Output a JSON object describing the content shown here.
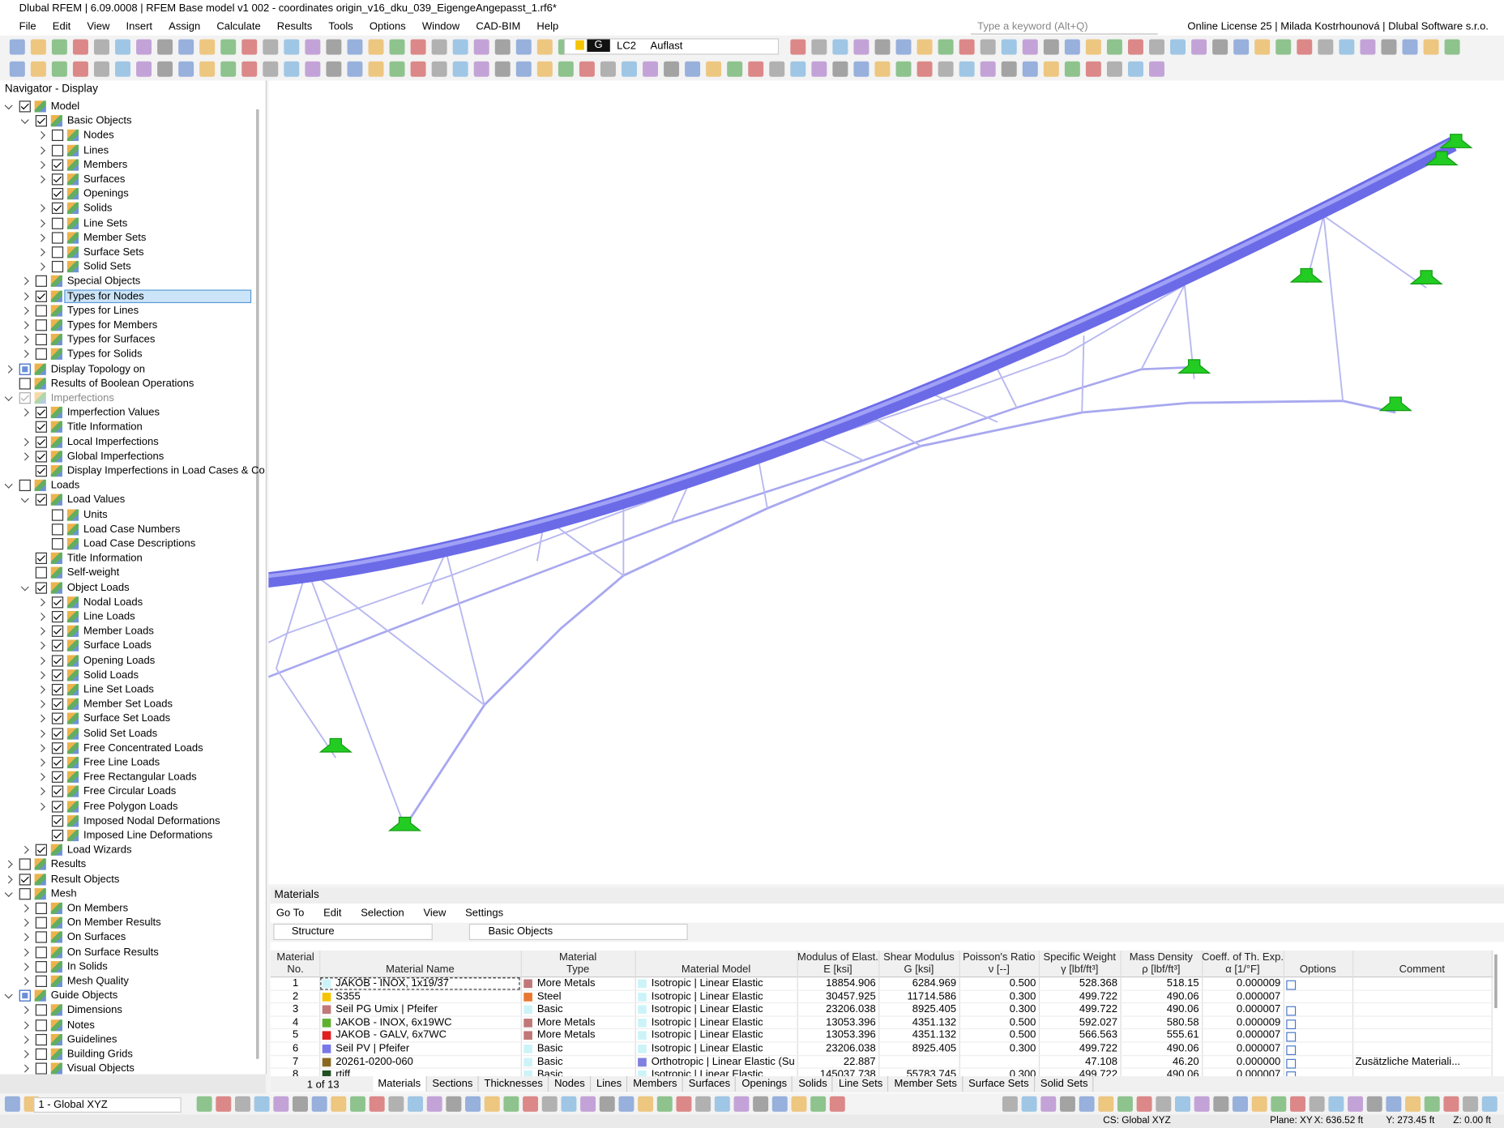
{
  "title_bar": {
    "title": "Dlubal RFEM | 6.09.0008 | RFEM Base model v1 002 - coordinates origin_v16_dku_039_EigengeAngepasst_1.rf6*"
  },
  "menu": [
    "File",
    "Edit",
    "View",
    "Insert",
    "Assign",
    "Calculate",
    "Results",
    "Tools",
    "Options",
    "Window",
    "CAD-BIM",
    "Help"
  ],
  "search_placeholder": "Type a keyword (Alt+Q)",
  "license": "Online License 25 | Milada Kostrhounová | Dlubal Software s.r.o.",
  "load_case": {
    "group": "G",
    "id": "LC2",
    "name": "Auflast"
  },
  "navigator": {
    "title": "Navigator - Display",
    "selected": 13,
    "items": [
      [
        "Model",
        0,
        1,
        2
      ],
      [
        "Basic Objects",
        1,
        1,
        2
      ],
      [
        "Nodes",
        2,
        0,
        1
      ],
      [
        "Lines",
        2,
        0,
        1
      ],
      [
        "Members",
        2,
        1,
        1
      ],
      [
        "Surfaces",
        2,
        1,
        1
      ],
      [
        "Openings",
        2,
        1,
        0
      ],
      [
        "Solids",
        2,
        1,
        1
      ],
      [
        "Line Sets",
        2,
        0,
        1
      ],
      [
        "Member Sets",
        2,
        0,
        1
      ],
      [
        "Surface Sets",
        2,
        0,
        1
      ],
      [
        "Solid Sets",
        2,
        0,
        1
      ],
      [
        "Special Objects",
        1,
        0,
        1
      ],
      [
        "Types for Nodes",
        1,
        1,
        1
      ],
      [
        "Types for Lines",
        1,
        0,
        1
      ],
      [
        "Types for Members",
        1,
        0,
        1
      ],
      [
        "Types for Surfaces",
        1,
        0,
        1
      ],
      [
        "Types for Solids",
        1,
        0,
        1
      ],
      [
        "Display Topology on",
        0,
        2,
        1
      ],
      [
        "Results of Boolean Operations",
        0,
        0,
        0
      ],
      [
        "Imperfections",
        0,
        3,
        2
      ],
      [
        "Imperfection Values",
        1,
        1,
        1
      ],
      [
        "Title Information",
        1,
        1,
        0
      ],
      [
        "Local Imperfections",
        1,
        1,
        1
      ],
      [
        "Global Imperfections",
        1,
        1,
        1
      ],
      [
        "Display Imperfections in Load Cases & Co...",
        1,
        1,
        0
      ],
      [
        "Loads",
        0,
        0,
        2
      ],
      [
        "Load Values",
        1,
        1,
        2
      ],
      [
        "Units",
        2,
        0,
        0
      ],
      [
        "Load Case Numbers",
        2,
        0,
        0
      ],
      [
        "Load Case Descriptions",
        2,
        0,
        0
      ],
      [
        "Title Information",
        1,
        1,
        0
      ],
      [
        "Self-weight",
        1,
        0,
        0
      ],
      [
        "Object Loads",
        1,
        1,
        2
      ],
      [
        "Nodal Loads",
        2,
        1,
        1
      ],
      [
        "Line Loads",
        2,
        1,
        1
      ],
      [
        "Member Loads",
        2,
        1,
        1
      ],
      [
        "Surface Loads",
        2,
        1,
        1
      ],
      [
        "Opening Loads",
        2,
        1,
        1
      ],
      [
        "Solid Loads",
        2,
        1,
        1
      ],
      [
        "Line Set Loads",
        2,
        1,
        1
      ],
      [
        "Member Set Loads",
        2,
        1,
        1
      ],
      [
        "Surface Set Loads",
        2,
        1,
        1
      ],
      [
        "Solid Set Loads",
        2,
        1,
        1
      ],
      [
        "Free Concentrated Loads",
        2,
        1,
        1
      ],
      [
        "Free Line Loads",
        2,
        1,
        1
      ],
      [
        "Free Rectangular Loads",
        2,
        1,
        1
      ],
      [
        "Free Circular Loads",
        2,
        1,
        1
      ],
      [
        "Free Polygon Loads",
        2,
        1,
        1
      ],
      [
        "Imposed Nodal Deformations",
        2,
        1,
        0
      ],
      [
        "Imposed Line Deformations",
        2,
        1,
        0
      ],
      [
        "Load Wizards",
        1,
        1,
        1
      ],
      [
        "Results",
        0,
        0,
        1
      ],
      [
        "Result Objects",
        0,
        1,
        1
      ],
      [
        "Mesh",
        0,
        0,
        2
      ],
      [
        "On Members",
        1,
        0,
        1
      ],
      [
        "On Member Results",
        1,
        0,
        1
      ],
      [
        "On Surfaces",
        1,
        0,
        1
      ],
      [
        "On Surface Results",
        1,
        0,
        1
      ],
      [
        "In Solids",
        1,
        0,
        1
      ],
      [
        "Mesh Quality",
        1,
        0,
        1
      ],
      [
        "Guide Objects",
        0,
        2,
        2
      ],
      [
        "Dimensions",
        1,
        0,
        1
      ],
      [
        "Notes",
        1,
        0,
        1
      ],
      [
        "Guidelines",
        1,
        0,
        1
      ],
      [
        "Building Grids",
        1,
        0,
        1
      ],
      [
        "Visual Objects",
        1,
        0,
        1
      ]
    ]
  },
  "materials": {
    "title": "Materials",
    "menu": [
      "Go To",
      "Edit",
      "Selection",
      "View",
      "Settings"
    ],
    "filter": "Structure",
    "objects": "Basic Objects",
    "headers": [
      [
        "Material",
        "No."
      ],
      [
        "Material Name"
      ],
      [
        "Material",
        "Type"
      ],
      [
        "Material Model"
      ],
      [
        "Modulus of Elast.",
        "E [ksi]"
      ],
      [
        "Shear Modulus",
        "G [ksi]"
      ],
      [
        "Poisson's Ratio",
        "ν [--]"
      ],
      [
        "Specific Weight",
        "γ [lbf/ft³]"
      ],
      [
        "Mass Density",
        "ρ [lbf/ft³]"
      ],
      [
        "Coeff. of Th. Exp.",
        "α [1/°F]"
      ],
      [
        "Options"
      ],
      [
        "Comment"
      ]
    ],
    "rows": [
      {
        "no": "1",
        "name": "JAKOB - INOX, 1x19/37",
        "color": "#ccf4f8",
        "type": "More Metals",
        "type_color": "#c07878",
        "model": "Isotropic | Linear Elastic",
        "model_color": "#ccf4f8",
        "e": "18854.906",
        "g": "6284.969",
        "nu": "0.500",
        "gamma": "528.368",
        "rho": "518.15",
        "alpha": "0.000009",
        "options": true
      },
      {
        "no": "2",
        "name": "S355",
        "color": "#f5c400",
        "type": "Steel",
        "type_color": "#e87830",
        "model": "Isotropic | Linear Elastic",
        "model_color": "#ccf4f8",
        "e": "30457.925",
        "g": "11714.586",
        "nu": "0.300",
        "gamma": "499.722",
        "rho": "490.06",
        "alpha": "0.000007",
        "options": false
      },
      {
        "no": "3",
        "name": "Seil PG Umix | Pfeifer",
        "color": "#c07878",
        "type": "Basic",
        "type_color": "#ccf4f8",
        "model": "Isotropic | Linear Elastic",
        "model_color": "#ccf4f8",
        "e": "23206.038",
        "g": "8925.405",
        "nu": "0.300",
        "gamma": "499.722",
        "rho": "490.06",
        "alpha": "0.000007",
        "options": true
      },
      {
        "no": "4",
        "name": "JAKOB - INOX, 6x19WC",
        "color": "#60b030",
        "type": "More Metals",
        "type_color": "#c07878",
        "model": "Isotropic | Linear Elastic",
        "model_color": "#ccf4f8",
        "e": "13053.396",
        "g": "4351.132",
        "nu": "0.500",
        "gamma": "592.027",
        "rho": "580.58",
        "alpha": "0.000009",
        "options": true
      },
      {
        "no": "5",
        "name": "JAKOB - GALV, 6x7WC",
        "color": "#e02020",
        "type": "More Metals",
        "type_color": "#c07878",
        "model": "Isotropic | Linear Elastic",
        "model_color": "#ccf4f8",
        "e": "13053.396",
        "g": "4351.132",
        "nu": "0.500",
        "gamma": "566.563",
        "rho": "555.61",
        "alpha": "0.000007",
        "options": true
      },
      {
        "no": "6",
        "name": "Seil PV | Pfeifer",
        "color": "#7878e8",
        "type": "Basic",
        "type_color": "#ccf4f8",
        "model": "Isotropic | Linear Elastic",
        "model_color": "#ccf4f8",
        "e": "23206.038",
        "g": "8925.405",
        "nu": "0.300",
        "gamma": "499.722",
        "rho": "490.06",
        "alpha": "0.000007",
        "options": true
      },
      {
        "no": "7",
        "name": "20261-0200-060",
        "color": "#8a6a20",
        "type": "Basic",
        "type_color": "#ccf4f8",
        "model": "Orthotropic | Linear Elastic (Surf...",
        "model_color": "#8080e0",
        "e": "22.887",
        "gamma": "47.108",
        "rho": "46.20",
        "alpha": "0.000000",
        "options": true,
        "comment": "Zusätzliche Materiali..."
      },
      {
        "no": "8",
        "name": "rtiff",
        "color": "#205020",
        "type": "Basic",
        "type_color": "#ccf4f8",
        "model": "Isotropic | Linear Elastic",
        "model_color": "#ccf4f8",
        "e": "145037.738",
        "g": "55783.745",
        "nu": "0.300",
        "gamma": "499.722",
        "rho": "490.06",
        "alpha": "0.000007",
        "options": true
      }
    ],
    "pager": "1 of 13",
    "tabs": [
      "Materials",
      "Sections",
      "Thicknesses",
      "Nodes",
      "Lines",
      "Members",
      "Surfaces",
      "Openings",
      "Solids",
      "Line Sets",
      "Member Sets",
      "Surface Sets",
      "Solid Sets"
    ],
    "active_tab": 0
  },
  "status_bar": {
    "coordinate_system": "1 - Global XYZ",
    "cs": "CS: Global XYZ",
    "plane": "Plane: XY",
    "x": "X: 636.52 ft",
    "y": "Y: 273.45 ft",
    "z": "Z: 0.00 ft"
  }
}
